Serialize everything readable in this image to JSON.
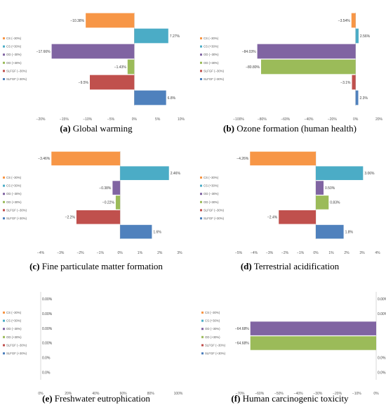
{
  "series_labels": [
    "CS (−30%)",
    "CS (+30%)",
    "OD (−30%)",
    "OD (+30%)",
    "SLFGF (−30%)",
    "SLFGF (+30%)"
  ],
  "series_colors": [
    "#F79646",
    "#4BACC6",
    "#8064A2",
    "#9BBB59",
    "#C0504D",
    "#4F81BD"
  ],
  "chart_data": [
    {
      "type": "bar",
      "orientation": "horizontal",
      "caption_letter": "(a)",
      "caption_text": " Global warming",
      "values": [
        -10.38,
        7.27,
        -17.66,
        -1.43,
        -9.5,
        6.8
      ],
      "data_labels": [
        "−10.38%",
        "7.27%",
        "−17.66%",
        "−1.43%",
        "−9.5%",
        "6.8%"
      ],
      "xlim": [
        -20,
        10
      ],
      "ticks": [
        -20,
        -15,
        -10,
        -5,
        0,
        5,
        10
      ],
      "tick_labels": [
        "−20%",
        "−15%",
        "−10%",
        "−5%",
        "0%",
        "5%",
        "10%"
      ],
      "legend_position": "left"
    },
    {
      "type": "bar",
      "orientation": "horizontal",
      "caption_letter": "(b)",
      "caption_text": " Ozone formation (human health)",
      "values": [
        -3.54,
        2.56,
        -84.03,
        -80.8,
        -3.1,
        2.3
      ],
      "data_labels": [
        "−3.54%",
        "2.56%",
        "−84.03%",
        "−80.80%",
        "−3.1%",
        "2.3%"
      ],
      "xlim": [
        -100,
        20
      ],
      "ticks": [
        -100,
        -80,
        -60,
        -40,
        -20,
        0,
        20
      ],
      "tick_labels": [
        "−100%",
        "−80%",
        "−60%",
        "−40%",
        "−20%",
        "0%",
        "20%"
      ],
      "legend_position": "left"
    },
    {
      "type": "bar",
      "orientation": "horizontal",
      "caption_letter": "(c)",
      "caption_text": " Fine particulate matter formation",
      "values": [
        -3.46,
        2.46,
        -0.38,
        -0.22,
        -2.2,
        1.6
      ],
      "data_labels": [
        "−3.46%",
        "2.46%",
        "−0.38%",
        "−0.22%",
        "−2.2%",
        "1.6%"
      ],
      "xlim": [
        -4,
        3
      ],
      "ticks": [
        -4,
        -3,
        -2,
        -1,
        0,
        1,
        2,
        3
      ],
      "tick_labels": [
        "−4%",
        "−3%",
        "−2%",
        "−1%",
        "0%",
        "1%",
        "2%",
        "3%"
      ],
      "legend_position": "left"
    },
    {
      "type": "bar",
      "orientation": "horizontal",
      "caption_letter": "(d)",
      "caption_text": " Terrestrial acidification",
      "values": [
        -4.26,
        3.06,
        0.5,
        0.83,
        -2.4,
        1.8
      ],
      "data_labels": [
        "−4.26%",
        "3.06%",
        "0.50%",
        "0.83%",
        "−2.4%",
        "1.8%"
      ],
      "xlim": [
        -5,
        4
      ],
      "ticks": [
        -5,
        -4,
        -3,
        -2,
        -1,
        0,
        1,
        2,
        3,
        4
      ],
      "tick_labels": [
        "−5%",
        "−4%",
        "−3%",
        "−2%",
        "−1%",
        "0%",
        "1%",
        "2%",
        "3%",
        "4%"
      ],
      "legend_position": "left"
    },
    {
      "type": "bar",
      "orientation": "horizontal",
      "caption_letter": "(e)",
      "caption_text": " Freshwater eutrophication",
      "values": [
        0,
        0,
        0,
        0,
        0,
        0
      ],
      "data_labels": [
        "0.00%",
        "0.00%",
        "0.00%",
        "0.00%",
        "0.0%",
        "0.0%"
      ],
      "xlim": [
        0,
        100
      ],
      "ticks": [
        0,
        20,
        40,
        60,
        80,
        100
      ],
      "tick_labels": [
        "0%",
        "20%",
        "40%",
        "60%",
        "80%",
        "100%"
      ],
      "legend_position": "left"
    },
    {
      "type": "bar",
      "orientation": "horizontal",
      "caption_letter": "(f)",
      "caption_text": " Human carcinogenic toxicity",
      "values": [
        0,
        0,
        -64.68,
        -64.68,
        0,
        0
      ],
      "data_labels": [
        "0.00%",
        "0.00%",
        "−64.68%",
        "−64.68%",
        "0.0%",
        "0.0%"
      ],
      "xlim": [
        -70,
        0
      ],
      "ticks": [
        -70,
        -60,
        -50,
        -40,
        -30,
        -20,
        -10,
        0
      ],
      "tick_labels": [
        "−70%",
        "−60%",
        "−50%",
        "−40%",
        "−30%",
        "−20%",
        "−10%",
        "0%"
      ],
      "legend_position": "left"
    }
  ]
}
